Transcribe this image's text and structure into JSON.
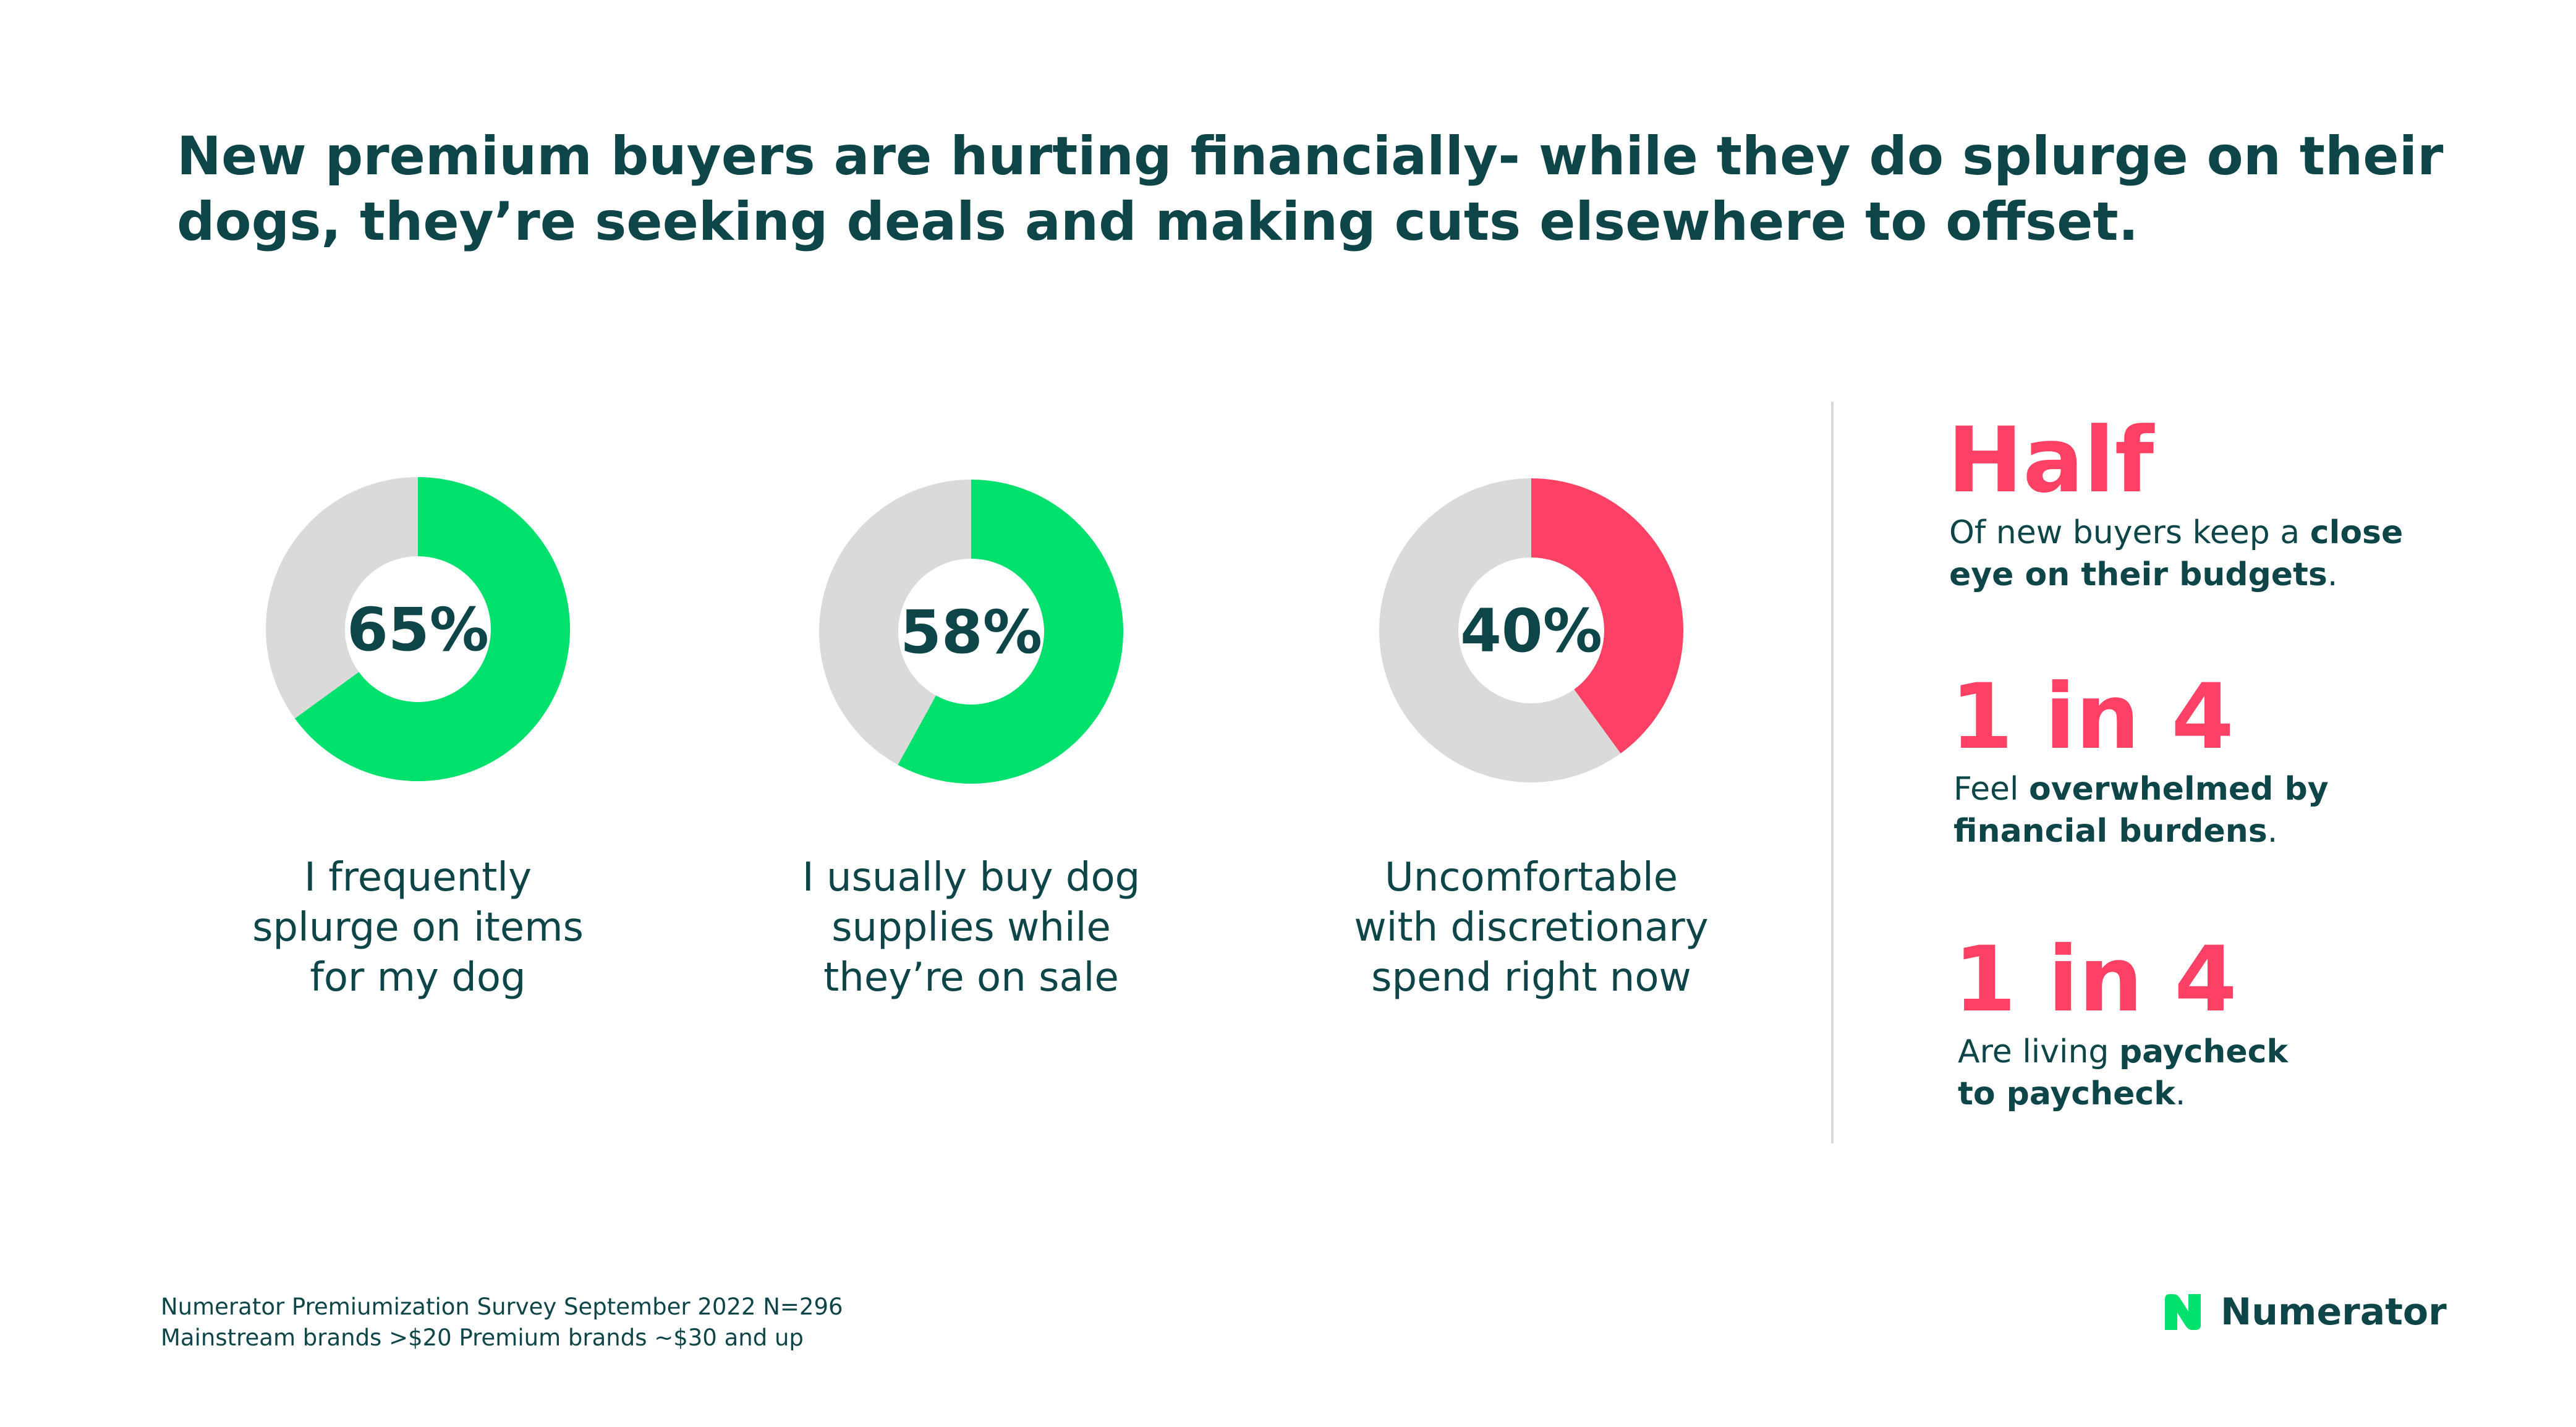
{
  "title": "New premium buyers are hurting financially- while they do splurge on their dogs, they’re seeking deals and making cuts elsewhere to offset.",
  "colors": {
    "text": "#0d4548",
    "green": "#00e06c",
    "red": "#fc4165",
    "track": "#dadada"
  },
  "chart_data": [
    {
      "type": "pie",
      "values": [
        65,
        35
      ],
      "center_label": "65%",
      "caption": "I frequently\nsplurge on items\nfor my dog",
      "color": "#00e06c"
    },
    {
      "type": "pie",
      "values": [
        58,
        42
      ],
      "center_label": "58%",
      "caption": "I usually buy dog\nsupplies while\nthey’re on sale",
      "color": "#00e06c"
    },
    {
      "type": "pie",
      "values": [
        40,
        60
      ],
      "center_label": "40%",
      "caption": "Uncomfortable\nwith discretionary\nspend right now",
      "color": "#fc4165"
    }
  ],
  "stats": [
    {
      "headline": "Half",
      "text_plain": "Of new buyers keep a ",
      "text_bold": "close eye on their budgets",
      "text_end": "."
    },
    {
      "headline": "1 in 4",
      "text_plain": "Feel ",
      "text_bold": "overwhelmed by financial burdens",
      "text_end": "."
    },
    {
      "headline": "1 in 4",
      "text_plain": "Are living ",
      "text_bold": "paycheck to paycheck",
      "text_end": "."
    }
  ],
  "footnote": {
    "line1": "Numerator Premiumization Survey September 2022 N=296",
    "line2": "Mainstream brands >$20 Premium brands ~$30 and up"
  },
  "logo": {
    "text": "Numerator",
    "icon": "numerator-logo-icon"
  }
}
